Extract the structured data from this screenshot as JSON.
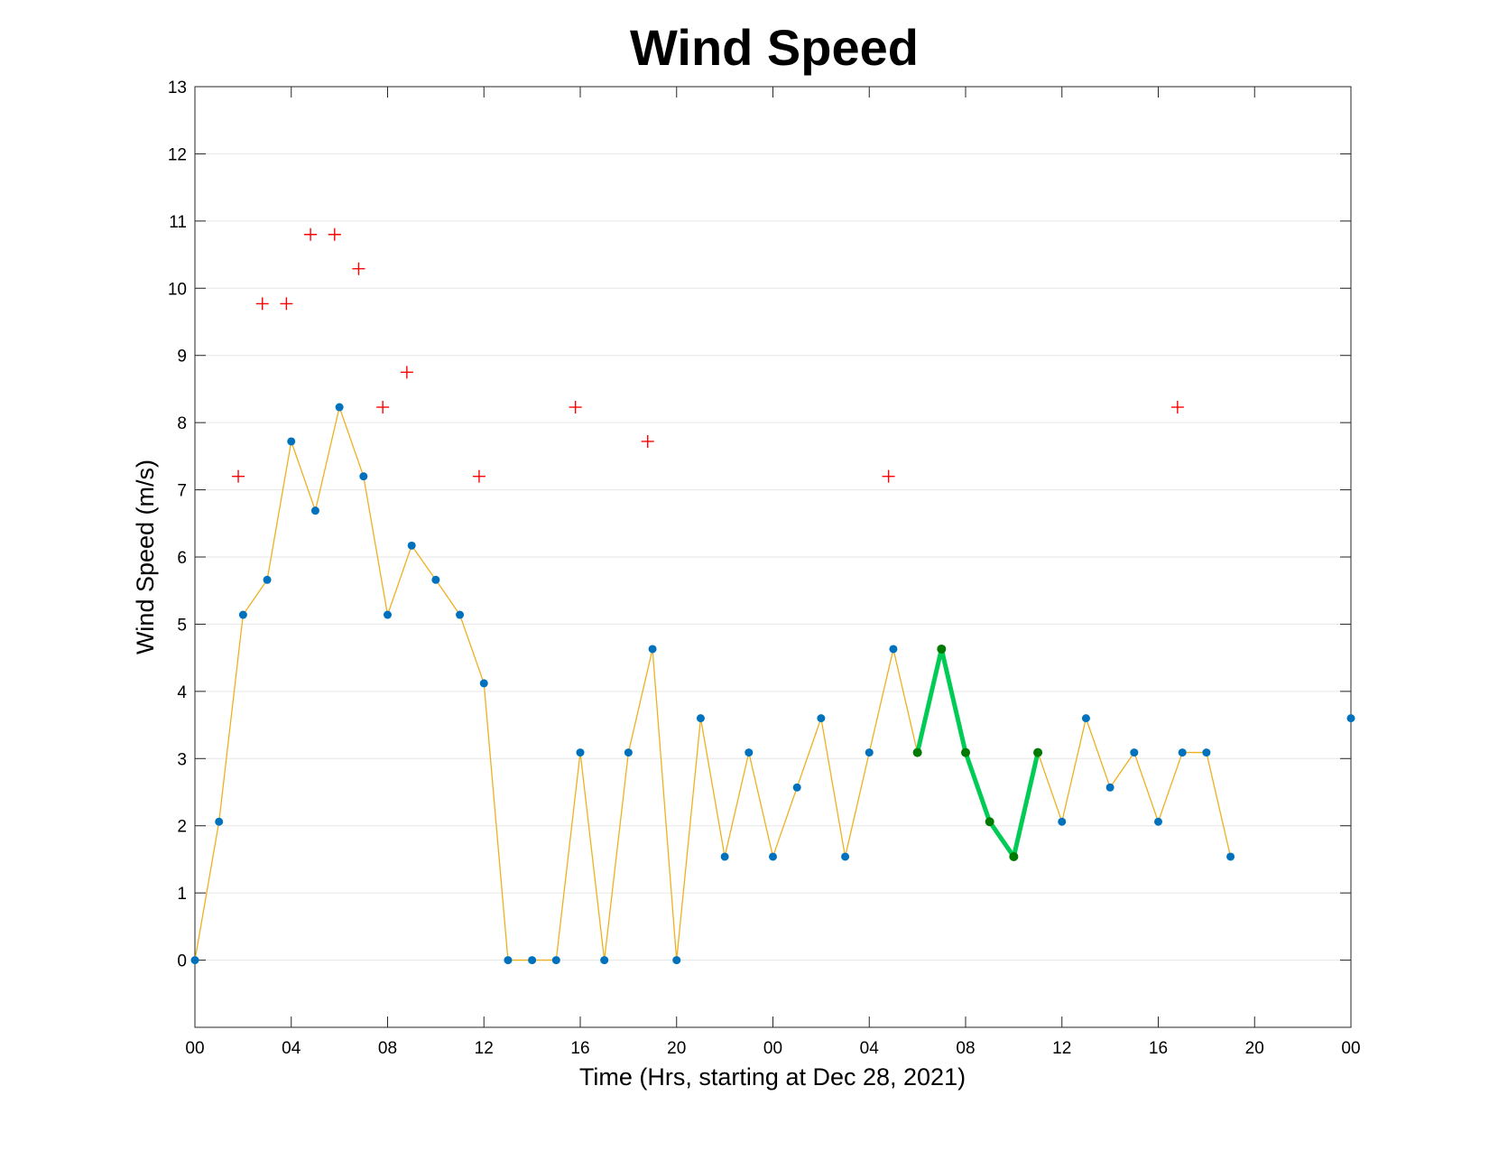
{
  "chart_data": {
    "type": "line",
    "title": "Wind Speed",
    "xlabel": "Time (Hrs, starting at Dec 28, 2021)",
    "ylabel": "Wind Speed (m/s)",
    "xlim": [
      0,
      48
    ],
    "ylim": [
      -1,
      13
    ],
    "yticks": [
      0,
      1,
      2,
      3,
      4,
      5,
      6,
      7,
      8,
      9,
      10,
      11,
      12,
      13
    ],
    "xticks": [
      0,
      4,
      8,
      12,
      16,
      20,
      24,
      28,
      32,
      36,
      40,
      44,
      48
    ],
    "xtick_labels": [
      "00",
      "04",
      "08",
      "12",
      "16",
      "20",
      "00",
      "04",
      "08",
      "12",
      "16",
      "20",
      "00"
    ],
    "grid": "horizontal",
    "colors": {
      "line": "#EDB120",
      "marker": "#0072BD",
      "highlight_line": "#00CC55",
      "highlight_marker": "#007A00",
      "gust": "#FF0000",
      "axis": "#262626",
      "grid": "#E6E6E6"
    },
    "series": [
      {
        "type": "line",
        "x": [
          0,
          1,
          2,
          3,
          4,
          5,
          6,
          7,
          8,
          9,
          10,
          11,
          12,
          13,
          14,
          15,
          16,
          17,
          18,
          19,
          20,
          21,
          22,
          23,
          24,
          25,
          26,
          27,
          28,
          29,
          30,
          31,
          32,
          33,
          34,
          35,
          36,
          37,
          38,
          39,
          40,
          41,
          42,
          43
        ],
        "y": [
          0,
          2.06,
          5.14,
          5.66,
          7.72,
          6.69,
          8.23,
          7.2,
          5.14,
          6.17,
          5.66,
          5.14,
          4.12,
          0,
          0,
          0,
          3.09,
          0,
          3.09,
          4.63,
          0,
          3.6,
          1.54,
          3.09,
          1.54,
          2.57,
          3.6,
          1.54,
          3.09,
          4.63,
          3.09,
          4.63,
          3.09,
          2.06,
          1.54,
          3.09,
          2.06,
          3.6,
          2.57,
          3.09,
          2.06,
          3.09,
          3.09,
          1.54
        ]
      },
      {
        "type": "line",
        "x": [
          30,
          31,
          32,
          33,
          34,
          35
        ],
        "y": [
          3.09,
          4.63,
          3.09,
          2.06,
          1.54,
          3.09
        ]
      },
      {
        "type": "scatter",
        "x": [
          48
        ],
        "y": [
          3.6
        ]
      },
      {
        "type": "scatter",
        "x": [
          1.8,
          2.8,
          3.8,
          4.8,
          5.8,
          6.8,
          7.8,
          8.8,
          11.8,
          15.8,
          18.8,
          28.8,
          40.8
        ],
        "y": [
          7.2,
          9.77,
          9.77,
          10.8,
          10.8,
          10.29,
          8.23,
          8.75,
          7.2,
          8.23,
          7.72,
          7.2,
          8.23
        ]
      }
    ]
  }
}
